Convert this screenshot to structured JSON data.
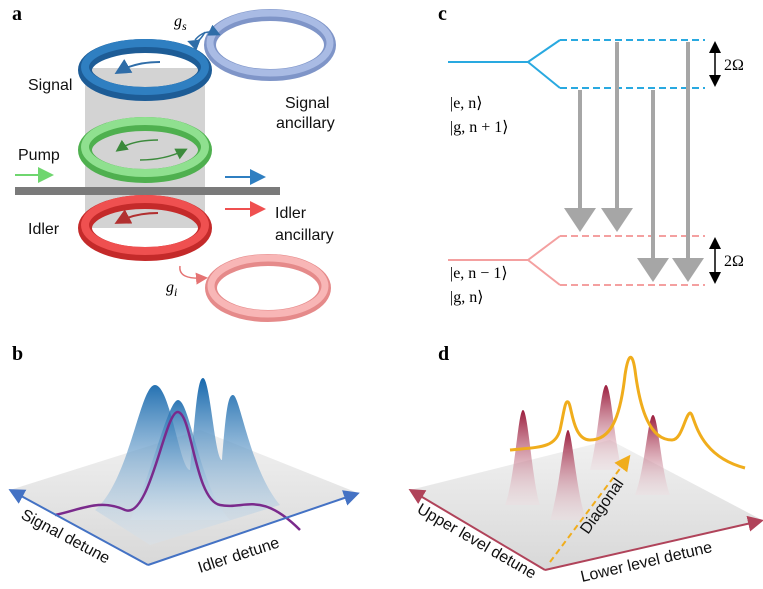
{
  "panels": [
    {
      "label": "a",
      "texts": {
        "coupling_signal": {
          "symbol": "g",
          "subscript": "s"
        },
        "signal": "Signal",
        "signal_ancillary": [
          "Signal",
          "ancillary"
        ],
        "pump": "Pump",
        "idler": "Idler",
        "idler_ancillary": [
          "Idler",
          "ancillary"
        ],
        "coupling_idler": {
          "symbol": "g",
          "subscript": "i"
        }
      }
    },
    {
      "label": "b",
      "axes": {
        "left": "Signal detune",
        "right": "Idler detune"
      }
    },
    {
      "label": "c",
      "upper_states": [
        "|e, n⟩",
        "|g, n + 1⟩"
      ],
      "lower_states": [
        "|e, n − 1⟩",
        "|g, n⟩"
      ],
      "upper_splitting": "2Ω",
      "lower_splitting": "2Ω"
    },
    {
      "label": "d",
      "axes": {
        "left": "Upper level detune",
        "right": "Lower level detune"
      },
      "diagonal": "Diagonal"
    }
  ]
}
